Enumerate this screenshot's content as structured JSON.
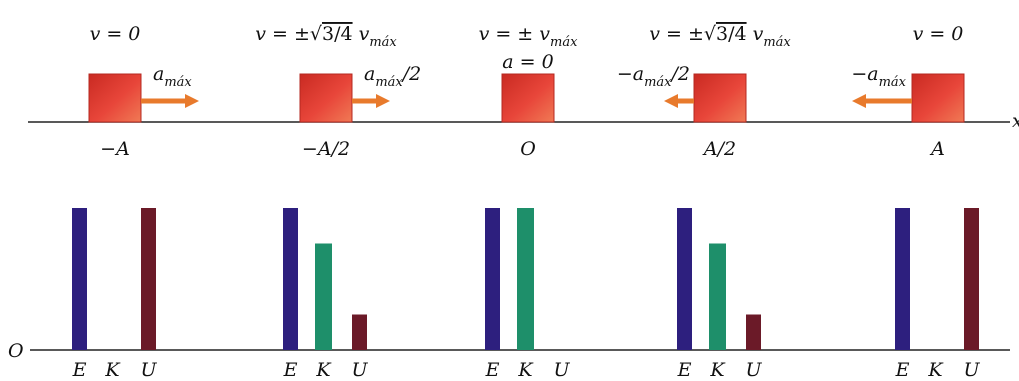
{
  "axis_letter": "x",
  "origin_label": "O",
  "colors": {
    "block": "#e0392c",
    "arrow": "#e87a2c",
    "E": "#2d1f7e",
    "K": "#1e8f6a",
    "U": "#6b1a28"
  },
  "states": [
    {
      "position": "−A",
      "velocity": {
        "prefix": "v = 0",
        "root": "",
        "suffix": "",
        "sub": ""
      },
      "accel": {
        "main": "a",
        "sub": "máx",
        "tail": "",
        "dir": "right"
      },
      "bars": {
        "E": 1.0,
        "K": 0.0,
        "U": 1.0
      }
    },
    {
      "position": "−A/2",
      "velocity": {
        "prefix": "v = ±",
        "root": "3/4",
        "suffix": " v",
        "sub": "máx"
      },
      "accel": {
        "main": "a",
        "sub": "máx",
        "tail": "/2",
        "dir": "right"
      },
      "bars": {
        "E": 1.0,
        "K": 0.75,
        "U": 0.25
      }
    },
    {
      "position": "O",
      "velocity": {
        "prefix": "v = ± v",
        "root": "",
        "suffix": "",
        "sub": "máx"
      },
      "accel": {
        "main": "a = 0",
        "sub": "",
        "tail": "",
        "dir": "none"
      },
      "bars": {
        "E": 1.0,
        "K": 1.0,
        "U": 0.0
      }
    },
    {
      "position": "A/2",
      "velocity": {
        "prefix": "v = ±",
        "root": "3/4",
        "suffix": " v",
        "sub": "máx"
      },
      "accel": {
        "main": "−a",
        "sub": "máx",
        "tail": "/2",
        "dir": "left"
      },
      "bars": {
        "E": 1.0,
        "K": 0.75,
        "U": 0.25
      }
    },
    {
      "position": "A",
      "velocity": {
        "prefix": "v = 0",
        "root": "",
        "suffix": "",
        "sub": ""
      },
      "accel": {
        "main": "−a",
        "sub": "máx",
        "tail": "",
        "dir": "left"
      },
      "bars": {
        "E": 1.0,
        "K": 0.0,
        "U": 1.0
      }
    }
  ],
  "bar_labels": [
    "E",
    "K",
    "U"
  ]
}
